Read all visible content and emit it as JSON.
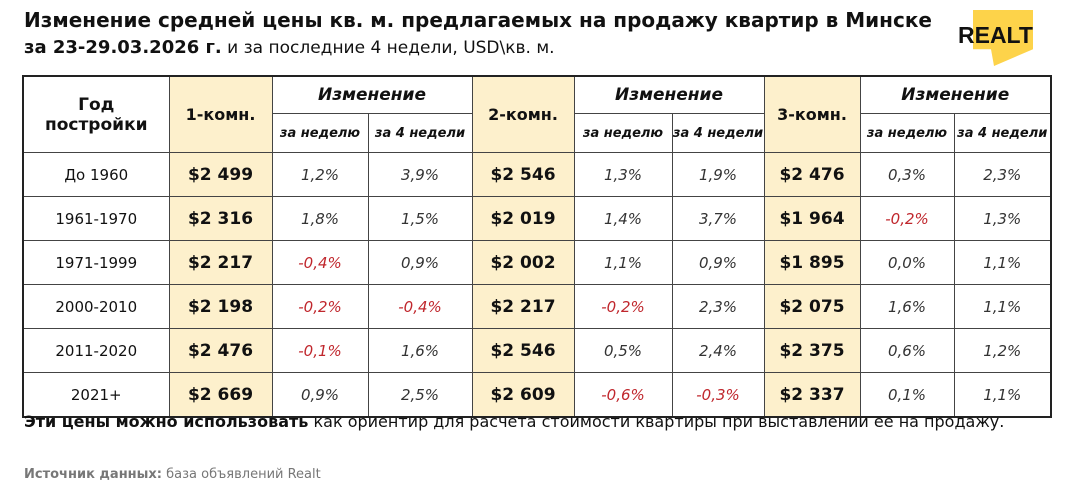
{
  "title": "Изменение средней цены кв. м. предлагаемых на продажу квартир в Минске",
  "subtitle_bold": "за 23-29.03.2026 г.",
  "subtitle_rest": " и за последние 4 недели, USD\\кв. м.",
  "logo": "REALT",
  "headers": {
    "year": "Год постройки",
    "r1": "1-комн.",
    "r2": "2-комн.",
    "r3": "3-комн.",
    "change": "Изменение",
    "week": "за неделю",
    "four": "за 4 недели"
  },
  "rows": [
    {
      "year": "До 1960",
      "p1": "$2 499",
      "w1": "1,2%",
      "f1": "3,9%",
      "p2": "$2 546",
      "w2": "1,3%",
      "f2": "1,9%",
      "p3": "$2 476",
      "w3": "0,3%",
      "f3": "2,3%"
    },
    {
      "year": "1961-1970",
      "p1": "$2 316",
      "w1": "1,8%",
      "f1": "1,5%",
      "p2": "$2 019",
      "w2": "1,4%",
      "f2": "3,7%",
      "p3": "$1 964",
      "w3": "-0,2%",
      "f3": "1,3%"
    },
    {
      "year": "1971-1999",
      "p1": "$2 217",
      "w1": "-0,4%",
      "f1": "0,9%",
      "p2": "$2 002",
      "w2": "1,1%",
      "f2": "0,9%",
      "p3": "$1 895",
      "w3": "0,0%",
      "f3": "1,1%"
    },
    {
      "year": "2000-2010",
      "p1": "$2 198",
      "w1": "-0,2%",
      "f1": "-0,4%",
      "p2": "$2 217",
      "w2": "-0,2%",
      "f2": "2,3%",
      "p3": "$2 075",
      "w3": "1,6%",
      "f3": "1,1%"
    },
    {
      "year": "2011-2020",
      "p1": "$2 476",
      "w1": "-0,1%",
      "f1": "1,6%",
      "p2": "$2 546",
      "w2": "0,5%",
      "f2": "2,4%",
      "p3": "$2 375",
      "w3": "0,6%",
      "f3": "1,2%"
    },
    {
      "year": "2021+",
      "p1": "$2 669",
      "w1": "0,9%",
      "f1": "2,5%",
      "p2": "$2 609",
      "w2": "-0,6%",
      "f2": "-0,3%",
      "p3": "$2 337",
      "w3": "0,1%",
      "f3": "1,1%"
    }
  ],
  "note_bold": "Эти цены можно использовать",
  "note_rest": " как ориентир для расчета стоимости квартиры при выставлении ее на продажу.",
  "source_label": "Источник данных:",
  "source_value": " база объявлений Realt",
  "colors": {
    "highlight": "#fdf0cc",
    "negative": "#c0272d",
    "logo": "#fdd34a"
  }
}
